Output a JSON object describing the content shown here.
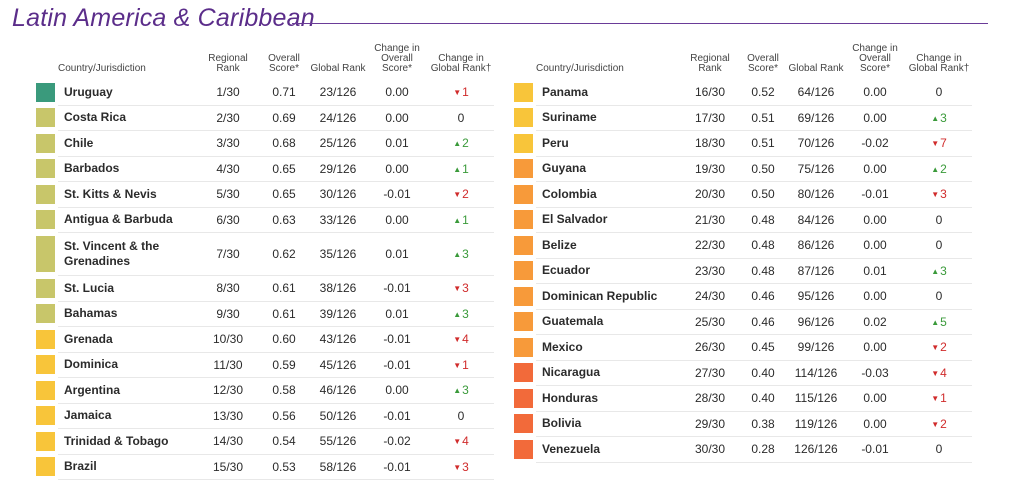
{
  "title": "Latin America & Caribbean",
  "headers": {
    "country": "Country/Jurisdiction",
    "regional_rank": "Regional Rank",
    "overall_score": "Overall Score*",
    "global_rank": "Global Rank",
    "change_score": "Change in Overall Score*",
    "change_rank": "Change in Global Rank†"
  },
  "colors": {
    "dark_green": "#3a9a7c",
    "olive": "#c8c66a",
    "yellow": "#f8c53a",
    "orange": "#f79a3a",
    "red_orange": "#f26a3a",
    "up": "#3a9a3a",
    "down": "#d02b2b"
  },
  "left_rows": [
    {
      "country": "Uruguay",
      "regional": "1/30",
      "score": "0.71",
      "global": "23/126",
      "change_score": "0.00",
      "change_rank": "1",
      "dir": "down",
      "color": "#3a9a7c"
    },
    {
      "country": "Costa Rica",
      "regional": "2/30",
      "score": "0.69",
      "global": "24/126",
      "change_score": "0.00",
      "change_rank": "0",
      "dir": "none",
      "color": "#c8c66a"
    },
    {
      "country": "Chile",
      "regional": "3/30",
      "score": "0.68",
      "global": "25/126",
      "change_score": "0.01",
      "change_rank": "2",
      "dir": "up",
      "color": "#c8c66a"
    },
    {
      "country": "Barbados",
      "regional": "4/30",
      "score": "0.65",
      "global": "29/126",
      "change_score": "0.00",
      "change_rank": "1",
      "dir": "up",
      "color": "#c8c66a"
    },
    {
      "country": "St. Kitts & Nevis",
      "regional": "5/30",
      "score": "0.65",
      "global": "30/126",
      "change_score": "-0.01",
      "change_rank": "2",
      "dir": "down",
      "color": "#c8c66a"
    },
    {
      "country": "Antigua & Barbuda",
      "regional": "6/30",
      "score": "0.63",
      "global": "33/126",
      "change_score": "0.00",
      "change_rank": "1",
      "dir": "up",
      "color": "#c8c66a"
    },
    {
      "country": "St. Vincent & the Grenadines",
      "regional": "7/30",
      "score": "0.62",
      "global": "35/126",
      "change_score": "0.01",
      "change_rank": "3",
      "dir": "up",
      "color": "#c8c66a",
      "tall": true
    },
    {
      "country": "St. Lucia",
      "regional": "8/30",
      "score": "0.61",
      "global": "38/126",
      "change_score": "-0.01",
      "change_rank": "3",
      "dir": "down",
      "color": "#c8c66a"
    },
    {
      "country": "Bahamas",
      "regional": "9/30",
      "score": "0.61",
      "global": "39/126",
      "change_score": "0.01",
      "change_rank": "3",
      "dir": "up",
      "color": "#c8c66a"
    },
    {
      "country": "Grenada",
      "regional": "10/30",
      "score": "0.60",
      "global": "43/126",
      "change_score": "-0.01",
      "change_rank": "4",
      "dir": "down",
      "color": "#f8c53a"
    },
    {
      "country": "Dominica",
      "regional": "11/30",
      "score": "0.59",
      "global": "45/126",
      "change_score": "-0.01",
      "change_rank": "1",
      "dir": "down",
      "color": "#f8c53a"
    },
    {
      "country": "Argentina",
      "regional": "12/30",
      "score": "0.58",
      "global": "46/126",
      "change_score": "0.00",
      "change_rank": "3",
      "dir": "up",
      "color": "#f8c53a"
    },
    {
      "country": "Jamaica",
      "regional": "13/30",
      "score": "0.56",
      "global": "50/126",
      "change_score": "-0.01",
      "change_rank": "0",
      "dir": "none",
      "color": "#f8c53a"
    },
    {
      "country": "Trinidad & Tobago",
      "regional": "14/30",
      "score": "0.54",
      "global": "55/126",
      "change_score": "-0.02",
      "change_rank": "4",
      "dir": "down",
      "color": "#f8c53a"
    },
    {
      "country": "Brazil",
      "regional": "15/30",
      "score": "0.53",
      "global": "58/126",
      "change_score": "-0.01",
      "change_rank": "3",
      "dir": "down",
      "color": "#f8c53a"
    }
  ],
  "right_rows": [
    {
      "country": "Panama",
      "regional": "16/30",
      "score": "0.52",
      "global": "64/126",
      "change_score": "0.00",
      "change_rank": "0",
      "dir": "none",
      "color": "#f8c53a"
    },
    {
      "country": "Suriname",
      "regional": "17/30",
      "score": "0.51",
      "global": "69/126",
      "change_score": "0.00",
      "change_rank": "3",
      "dir": "up",
      "color": "#f8c53a"
    },
    {
      "country": "Peru",
      "regional": "18/30",
      "score": "0.51",
      "global": "70/126",
      "change_score": "-0.02",
      "change_rank": "7",
      "dir": "down",
      "color": "#f8c53a"
    },
    {
      "country": "Guyana",
      "regional": "19/30",
      "score": "0.50",
      "global": "75/126",
      "change_score": "0.00",
      "change_rank": "2",
      "dir": "up",
      "color": "#f79a3a"
    },
    {
      "country": "Colombia",
      "regional": "20/30",
      "score": "0.50",
      "global": "80/126",
      "change_score": "-0.01",
      "change_rank": "3",
      "dir": "down",
      "color": "#f79a3a"
    },
    {
      "country": "El Salvador",
      "regional": "21/30",
      "score": "0.48",
      "global": "84/126",
      "change_score": "0.00",
      "change_rank": "0",
      "dir": "none",
      "color": "#f79a3a"
    },
    {
      "country": "Belize",
      "regional": "22/30",
      "score": "0.48",
      "global": "86/126",
      "change_score": "0.00",
      "change_rank": "0",
      "dir": "none",
      "color": "#f79a3a"
    },
    {
      "country": "Ecuador",
      "regional": "23/30",
      "score": "0.48",
      "global": "87/126",
      "change_score": "0.01",
      "change_rank": "3",
      "dir": "up",
      "color": "#f79a3a"
    },
    {
      "country": "Dominican Republic",
      "regional": "24/30",
      "score": "0.46",
      "global": "95/126",
      "change_score": "0.00",
      "change_rank": "0",
      "dir": "none",
      "color": "#f79a3a"
    },
    {
      "country": "Guatemala",
      "regional": "25/30",
      "score": "0.46",
      "global": "96/126",
      "change_score": "0.02",
      "change_rank": "5",
      "dir": "up",
      "color": "#f79a3a"
    },
    {
      "country": "Mexico",
      "regional": "26/30",
      "score": "0.45",
      "global": "99/126",
      "change_score": "0.00",
      "change_rank": "2",
      "dir": "down",
      "color": "#f79a3a"
    },
    {
      "country": "Nicaragua",
      "regional": "27/30",
      "score": "0.40",
      "global": "114/126",
      "change_score": "-0.03",
      "change_rank": "4",
      "dir": "down",
      "color": "#f26a3a"
    },
    {
      "country": "Honduras",
      "regional": "28/30",
      "score": "0.40",
      "global": "115/126",
      "change_score": "0.00",
      "change_rank": "1",
      "dir": "down",
      "color": "#f26a3a"
    },
    {
      "country": "Bolivia",
      "regional": "29/30",
      "score": "0.38",
      "global": "119/126",
      "change_score": "0.00",
      "change_rank": "2",
      "dir": "down",
      "color": "#f26a3a"
    },
    {
      "country": "Venezuela",
      "regional": "30/30",
      "score": "0.28",
      "global": "126/126",
      "change_score": "-0.01",
      "change_rank": "0",
      "dir": "none",
      "color": "#f26a3a"
    }
  ]
}
